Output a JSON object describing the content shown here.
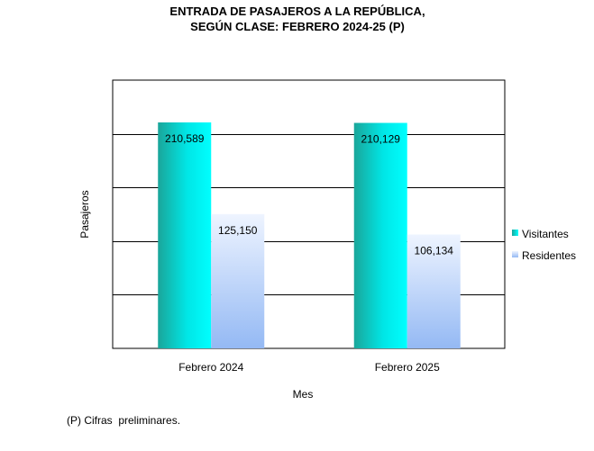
{
  "chart_data": {
    "type": "bar",
    "title": [
      "ENTRADA  DE  PASAJEROS  A  LA  REPÚBLICA,",
      "SEGÚN  CLASE:  FEBRERO  2024-25  (P)"
    ],
    "xlabel": "Mes",
    "ylabel": "Pasajeros",
    "categories": [
      "Febrero 2024",
      "Febrero 2025"
    ],
    "series": [
      {
        "name": "Visitantes",
        "values": [
          210589,
          210129
        ],
        "labels": [
          "210,589",
          "210,129"
        ],
        "color_dark": "#1aa69a",
        "color_light": "#00ffff"
      },
      {
        "name": "Residentes",
        "values": [
          125150,
          106134
        ],
        "labels": [
          "125,150",
          "106,134"
        ],
        "color_dark": "#99bdf5",
        "color_light": "#eaf2ff"
      }
    ],
    "ylim": [
      0,
      250000
    ],
    "ytick_step": 50000,
    "grid": true,
    "legend_position": "right"
  },
  "footnote": "(P) Cifras  preliminares."
}
